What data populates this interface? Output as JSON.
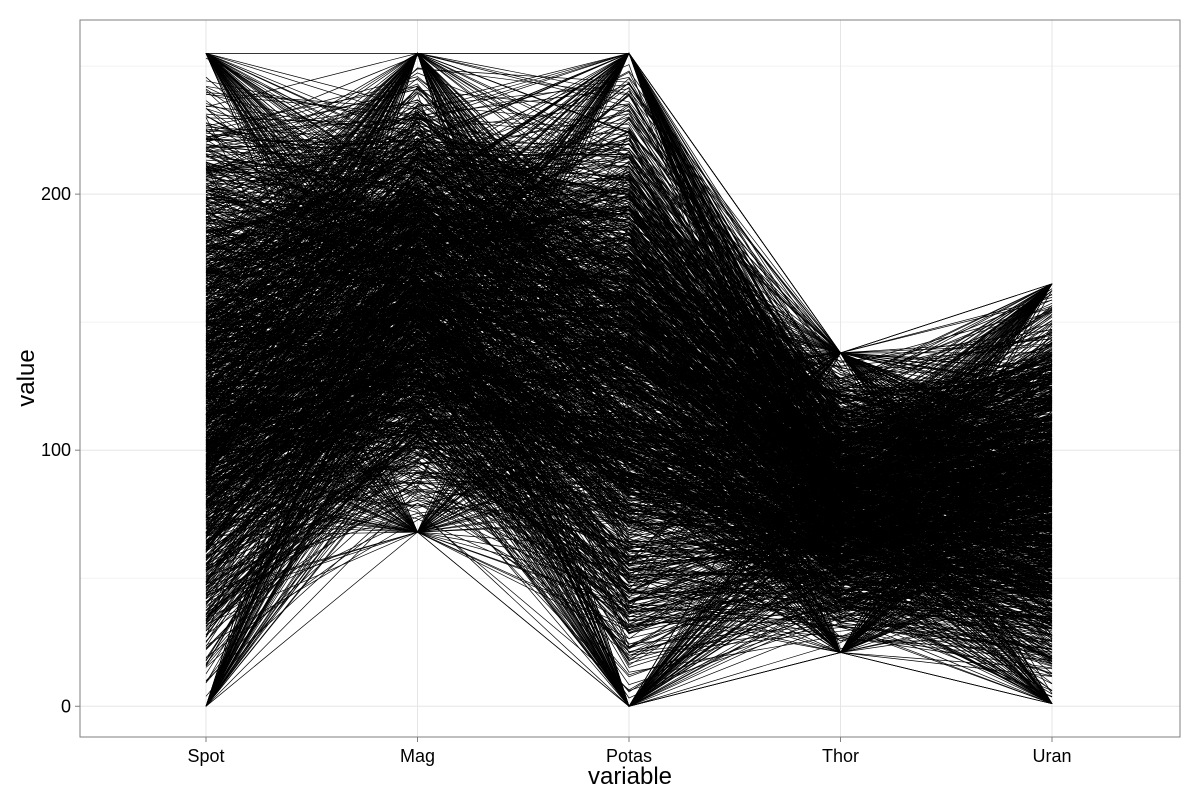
{
  "chart_data": {
    "type": "parallel-coordinates",
    "xlabel": "variable",
    "ylabel": "value",
    "categories": [
      "Spot",
      "Mag",
      "Potas",
      "Thor",
      "Uran"
    ],
    "ylim": [
      -12,
      268
    ],
    "yticks": [
      0,
      100,
      200
    ],
    "grid": true,
    "line_color": "#000000",
    "value_ranges": {
      "Spot": [
        0,
        255
      ],
      "Mag": [
        67,
        255
      ],
      "Potas": [
        0,
        255
      ],
      "Thor": [
        21,
        138
      ],
      "Uran": [
        1,
        165
      ]
    },
    "profile_min": [
      0,
      68,
      0,
      21,
      1
    ],
    "profile_max": [
      255,
      255,
      255,
      138,
      165
    ],
    "line_count": 1500
  }
}
